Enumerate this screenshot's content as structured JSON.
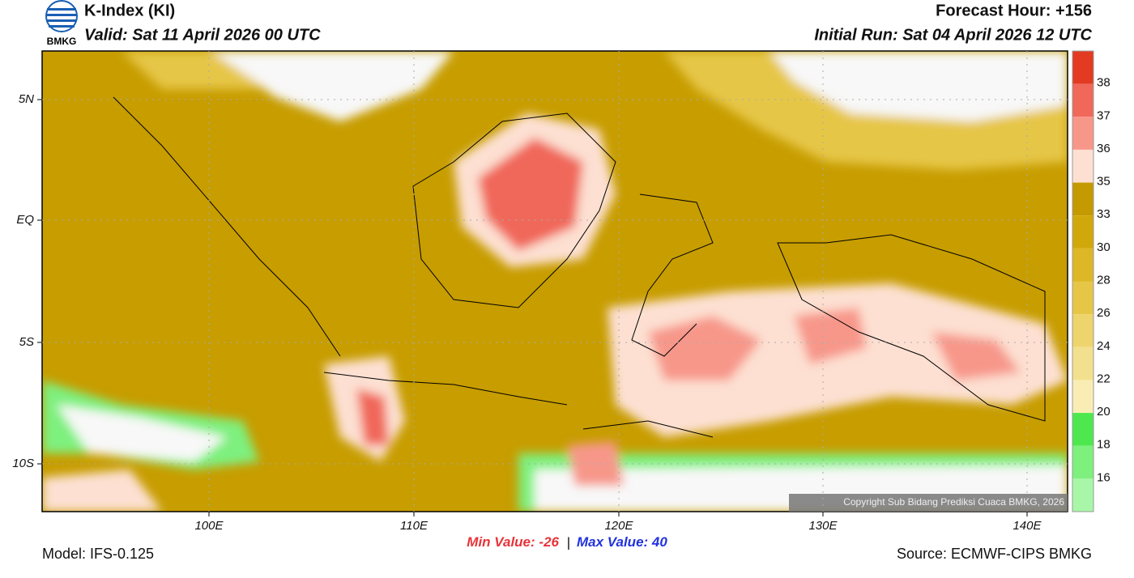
{
  "header": {
    "logo_text": "BMKG",
    "title": "K-Index (KI)",
    "valid": "Valid: Sat 11 April 2026 00 UTC",
    "forecast_hour": "Forecast Hour: +156",
    "initial_run": "Initial Run: Sat 04 April 2026 12 UTC"
  },
  "map": {
    "lat_labels": [
      "5N",
      "EQ",
      "5S",
      "10S"
    ],
    "lon_labels": [
      "100E",
      "110E",
      "120E",
      "130E",
      "140E"
    ],
    "copyright": "Copyright Sub Bidang Prediksi Cuaca BMKG, 2026"
  },
  "colorbar": {
    "labels": [
      38,
      37,
      36,
      35,
      33,
      30,
      28,
      26,
      24,
      22,
      20,
      18,
      16
    ],
    "colors": [
      "#e33a22",
      "#f0685a",
      "#f7978a",
      "#fde0d2",
      "#c49a00",
      "#d1a80a",
      "#ddb726",
      "#e6c646",
      "#eed46c",
      "#f3e08e",
      "#f9edb4",
      "#4ee84e",
      "#7ef07e",
      "#a8f7a8"
    ]
  },
  "stats": {
    "min_label": "Min Value:",
    "min": -26,
    "separator": "|",
    "max_label": "Max Value:",
    "max": 40
  },
  "footer": {
    "model": "Model: IFS-0.125",
    "source": "Source: ECMWF-CIPS BMKG"
  }
}
